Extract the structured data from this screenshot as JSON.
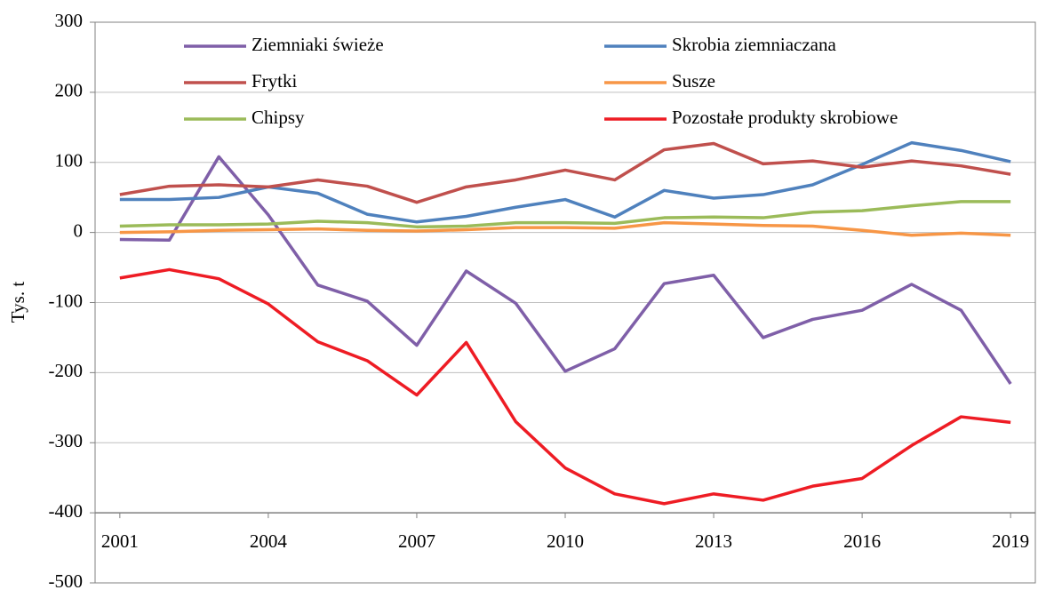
{
  "chart_data": {
    "type": "line",
    "ylabel": "Tys. t",
    "x": [
      2001,
      2002,
      2003,
      2004,
      2005,
      2006,
      2007,
      2008,
      2009,
      2010,
      2011,
      2012,
      2013,
      2014,
      2015,
      2016,
      2017,
      2018,
      2019
    ],
    "xlim": [
      2000.5,
      2019.5
    ],
    "xticks": [
      2001,
      2004,
      2007,
      2010,
      2013,
      2016,
      2019
    ],
    "x_axis_crosses": -400,
    "ylim": [
      -500,
      300
    ],
    "yticks": [
      -500,
      -400,
      -300,
      -200,
      -100,
      0,
      100,
      200,
      300
    ],
    "grid": true,
    "legend": "top",
    "series": [
      {
        "name": "Ziemniaki świeże",
        "color": "#7f5fa8",
        "values": [
          -10,
          -11,
          108,
          25,
          -75,
          -98,
          -161,
          -55,
          -101,
          -198,
          -166,
          -73,
          -61,
          -150,
          -124,
          -111,
          -74,
          -111,
          -216
        ]
      },
      {
        "name": "Skrobia ziemniaczana",
        "color": "#4f81bd",
        "values": [
          47,
          47,
          50,
          65,
          56,
          26,
          15,
          23,
          36,
          47,
          22,
          60,
          49,
          54,
          68,
          97,
          128,
          117,
          101
        ]
      },
      {
        "name": "Frytki",
        "color": "#c0504d",
        "values": [
          54,
          66,
          68,
          65,
          75,
          66,
          43,
          65,
          75,
          89,
          75,
          118,
          127,
          98,
          102,
          93,
          102,
          95,
          83
        ]
      },
      {
        "name": "Susze",
        "color": "#f79646",
        "values": [
          0,
          1,
          3,
          4,
          5,
          3,
          2,
          4,
          7,
          7,
          6,
          14,
          12,
          10,
          9,
          3,
          -4,
          -1,
          -4
        ]
      },
      {
        "name": "Chipsy",
        "color": "#9bbb59",
        "values": [
          9,
          11,
          11,
          12,
          16,
          14,
          8,
          9,
          14,
          14,
          13,
          21,
          22,
          21,
          29,
          31,
          38,
          44,
          44
        ]
      },
      {
        "name": "Pozostałe produkty skrobiowe",
        "color": "#ee1c24",
        "values": [
          -65,
          -53,
          -66,
          -102,
          -156,
          -183,
          -232,
          -157,
          -270,
          -336,
          -373,
          -387,
          -373,
          -382,
          -362,
          -351,
          -304,
          -263,
          -271
        ]
      }
    ]
  }
}
